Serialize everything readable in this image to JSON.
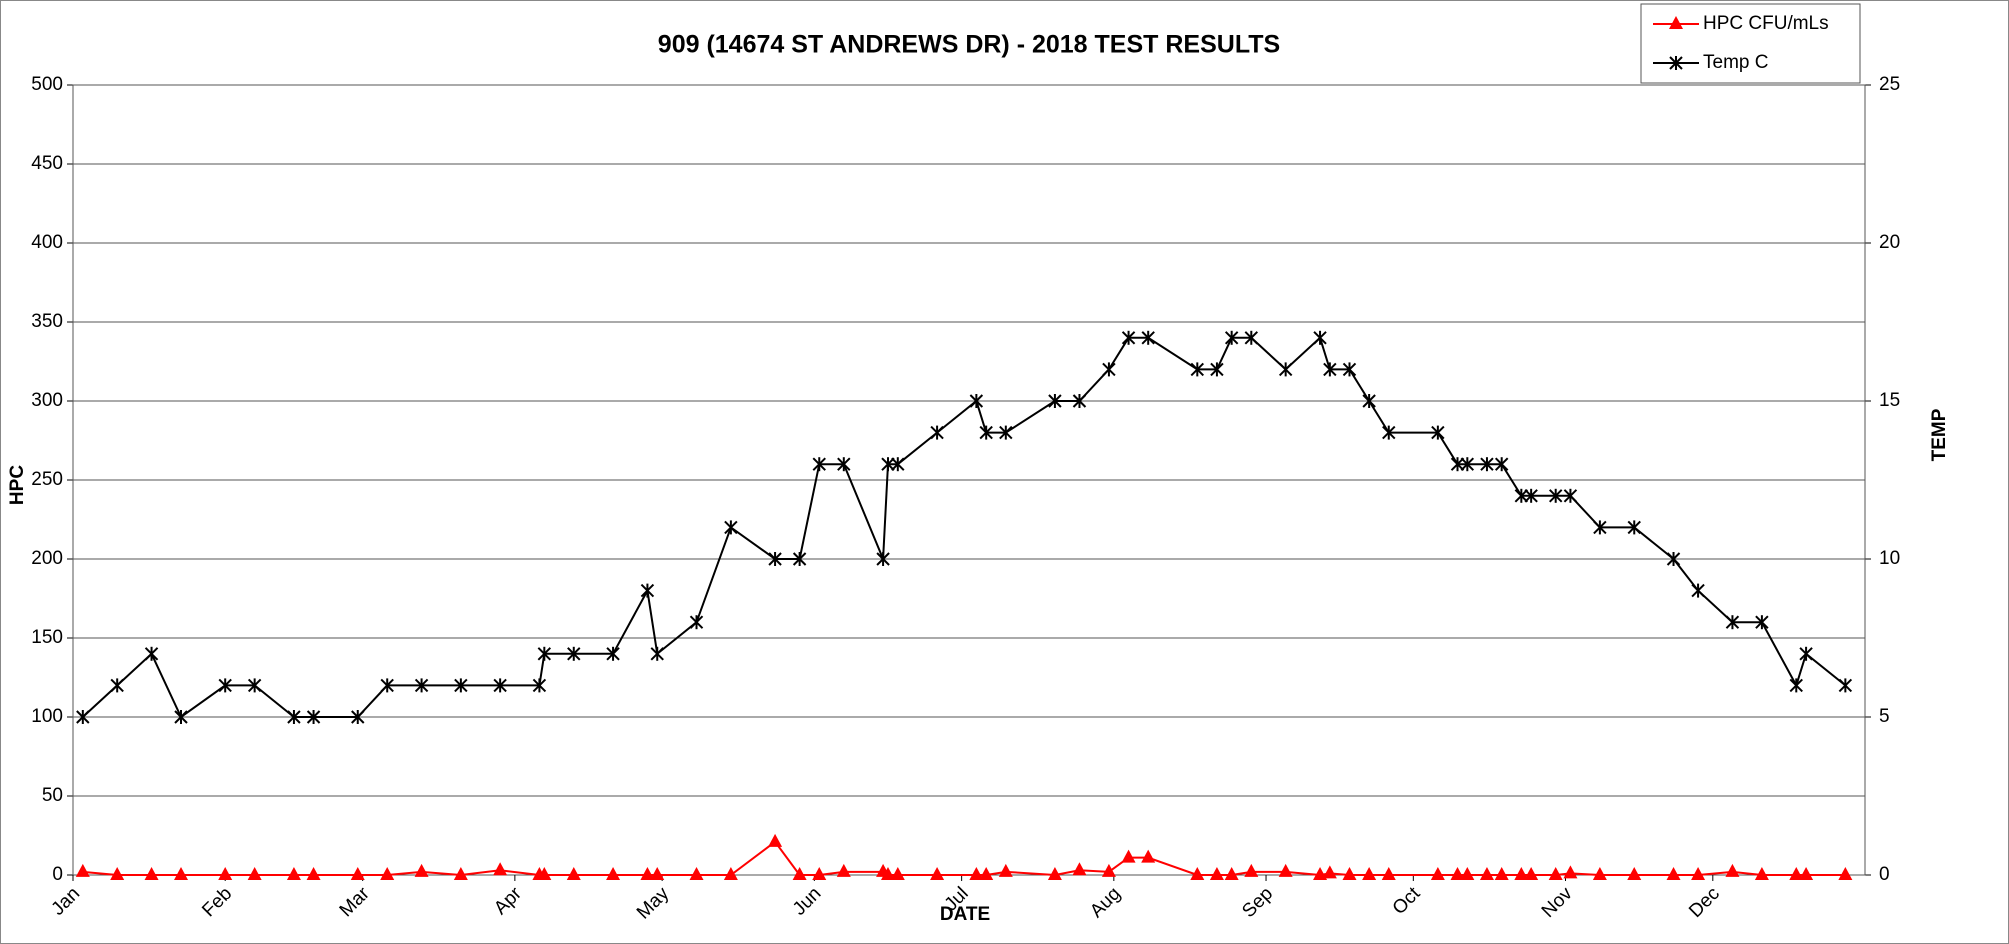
{
  "chart_data": {
    "type": "line",
    "title": "909 (14674 ST ANDREWS DR) - 2018 TEST RESULTS",
    "x_label": "DATE",
    "y_label": "HPC",
    "y2_label": "TEMP",
    "x": [
      2,
      9,
      16,
      22,
      31,
      37,
      45,
      49,
      58,
      64,
      71,
      79,
      87,
      95,
      96,
      102,
      110,
      117,
      119,
      127,
      134,
      143,
      148,
      152,
      157,
      165,
      166,
      168,
      176,
      184,
      186,
      190,
      200,
      205,
      211,
      215,
      219,
      229,
      233,
      236,
      240,
      247,
      254,
      256,
      260,
      264,
      268,
      278,
      282,
      284,
      288,
      291,
      295,
      297,
      302,
      305,
      311,
      318,
      326,
      331,
      338,
      344,
      351,
      353,
      361
    ],
    "xlim": [
      0,
      365
    ],
    "xticks": [
      {
        "value": 0,
        "label": "Jan"
      },
      {
        "value": 31,
        "label": "Feb"
      },
      {
        "value": 59,
        "label": "Mar"
      },
      {
        "value": 90,
        "label": "Apr"
      },
      {
        "value": 120,
        "label": "May"
      },
      {
        "value": 151,
        "label": "Jun"
      },
      {
        "value": 181,
        "label": "Jul"
      },
      {
        "value": 212,
        "label": "Aug"
      },
      {
        "value": 243,
        "label": "Sep"
      },
      {
        "value": 273,
        "label": "Oct"
      },
      {
        "value": 304,
        "label": "Nov"
      },
      {
        "value": 334,
        "label": "Dec"
      }
    ],
    "ylim": [
      0,
      500
    ],
    "yticks": [
      0,
      50,
      100,
      150,
      200,
      250,
      300,
      350,
      400,
      450,
      500
    ],
    "y2lim": [
      0,
      25
    ],
    "y2ticks": [
      0,
      5,
      10,
      15,
      20,
      25
    ],
    "grid": true,
    "legend": "top-right",
    "series": [
      {
        "name": "HPC CFU/mLs",
        "color": "#ff0000",
        "marker": "triangle",
        "values": [
          2,
          0,
          0,
          0,
          0,
          0,
          0,
          0,
          0,
          0,
          2,
          0,
          3,
          0,
          0,
          0,
          0,
          0,
          0,
          0,
          0,
          21,
          0,
          0,
          2,
          2,
          0,
          0,
          0,
          0,
          0,
          2,
          0,
          3,
          2,
          11,
          11,
          0,
          0,
          0,
          2,
          2,
          0,
          1,
          0,
          0,
          0,
          0,
          0,
          0,
          0,
          0,
          0,
          0,
          0,
          1,
          0,
          0,
          0,
          0,
          2,
          0,
          0,
          0,
          0
        ]
      },
      {
        "name": "Temp C",
        "color": "#000000",
        "marker": "asterisk",
        "axis": "y2",
        "values": [
          5,
          6,
          7,
          5,
          6,
          6,
          5,
          5,
          5,
          6,
          6,
          6,
          6,
          6,
          7,
          7,
          7,
          9,
          7,
          8,
          11,
          10,
          10,
          13,
          13,
          10,
          13,
          13,
          14,
          15,
          14,
          14,
          15,
          15,
          16,
          17,
          17,
          16,
          16,
          17,
          17,
          16,
          17,
          16,
          16,
          15,
          14,
          14,
          13,
          13,
          13,
          13,
          12,
          12,
          12,
          12,
          11,
          11,
          10,
          9,
          8,
          8,
          6,
          7,
          6
        ]
      }
    ]
  }
}
